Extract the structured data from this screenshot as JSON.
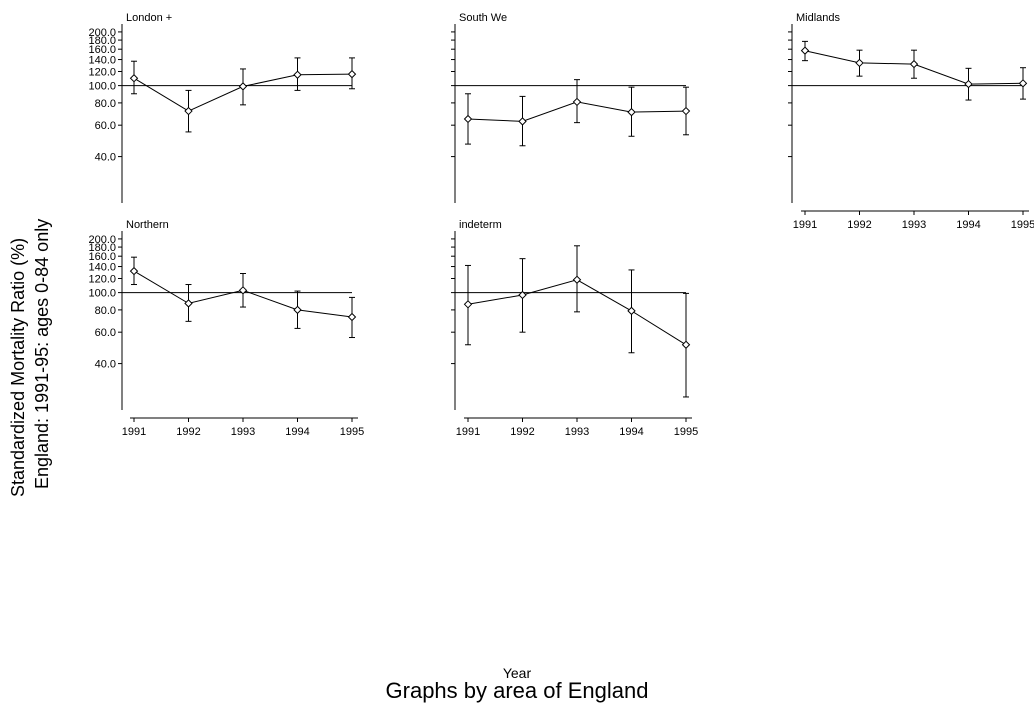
{
  "chart_data": {
    "type": "line",
    "ylabel": [
      "Standardized Mortality Ratio (%)",
      "England: 1991-95: ages 0-84 only"
    ],
    "xlabel": "Year",
    "caption": "Graphs by area of England",
    "x": [
      1991,
      1992,
      1993,
      1994,
      1995
    ],
    "x_tick_labels": [
      "1991",
      "1992",
      "1993",
      "1994",
      "1995"
    ],
    "y_scale": "log",
    "ylim": [
      25,
      205
    ],
    "y_ticks": [
      40,
      60,
      80,
      100,
      120,
      140,
      160,
      180,
      200
    ],
    "y_tick_labels": [
      "40.0",
      "60.0",
      "80.0",
      "100.0",
      "120.0",
      "140.0",
      "160.0",
      "180.0",
      "200.0"
    ],
    "reference_line": 100,
    "marker": "diamond",
    "panels": [
      {
        "title": "London +",
        "values": [
          110,
          72,
          99,
          115,
          116
        ],
        "lower": [
          90,
          55,
          78,
          94,
          96
        ],
        "upper": [
          137,
          94,
          124,
          143,
          143
        ],
        "show_y_labels": true,
        "show_x_labels": false
      },
      {
        "title": "South We",
        "values": [
          65,
          63,
          81,
          71,
          72
        ],
        "lower": [
          47,
          46,
          62,
          52,
          53
        ],
        "upper": [
          90,
          87,
          108,
          98,
          98
        ],
        "show_y_labels": false,
        "show_x_labels": false
      },
      {
        "title": "Midlands",
        "values": [
          157,
          134,
          132,
          102,
          103
        ],
        "lower": [
          138,
          113,
          110,
          83,
          84
        ],
        "upper": [
          177,
          158,
          158,
          125,
          126
        ],
        "show_y_labels": false,
        "show_x_labels": true
      },
      {
        "title": "Northern",
        "values": [
          132,
          87,
          103,
          80,
          73
        ],
        "lower": [
          111,
          69,
          83,
          63,
          56
        ],
        "upper": [
          158,
          111,
          128,
          102,
          94
        ],
        "show_y_labels": true,
        "show_x_labels": true
      },
      {
        "title": "indeterm",
        "values": [
          86,
          97,
          118,
          79,
          51
        ],
        "lower": [
          51,
          60,
          78,
          46,
          26
        ],
        "upper": [
          142,
          155,
          183,
          134,
          99
        ],
        "show_y_labels": false,
        "show_x_labels": true
      }
    ]
  }
}
